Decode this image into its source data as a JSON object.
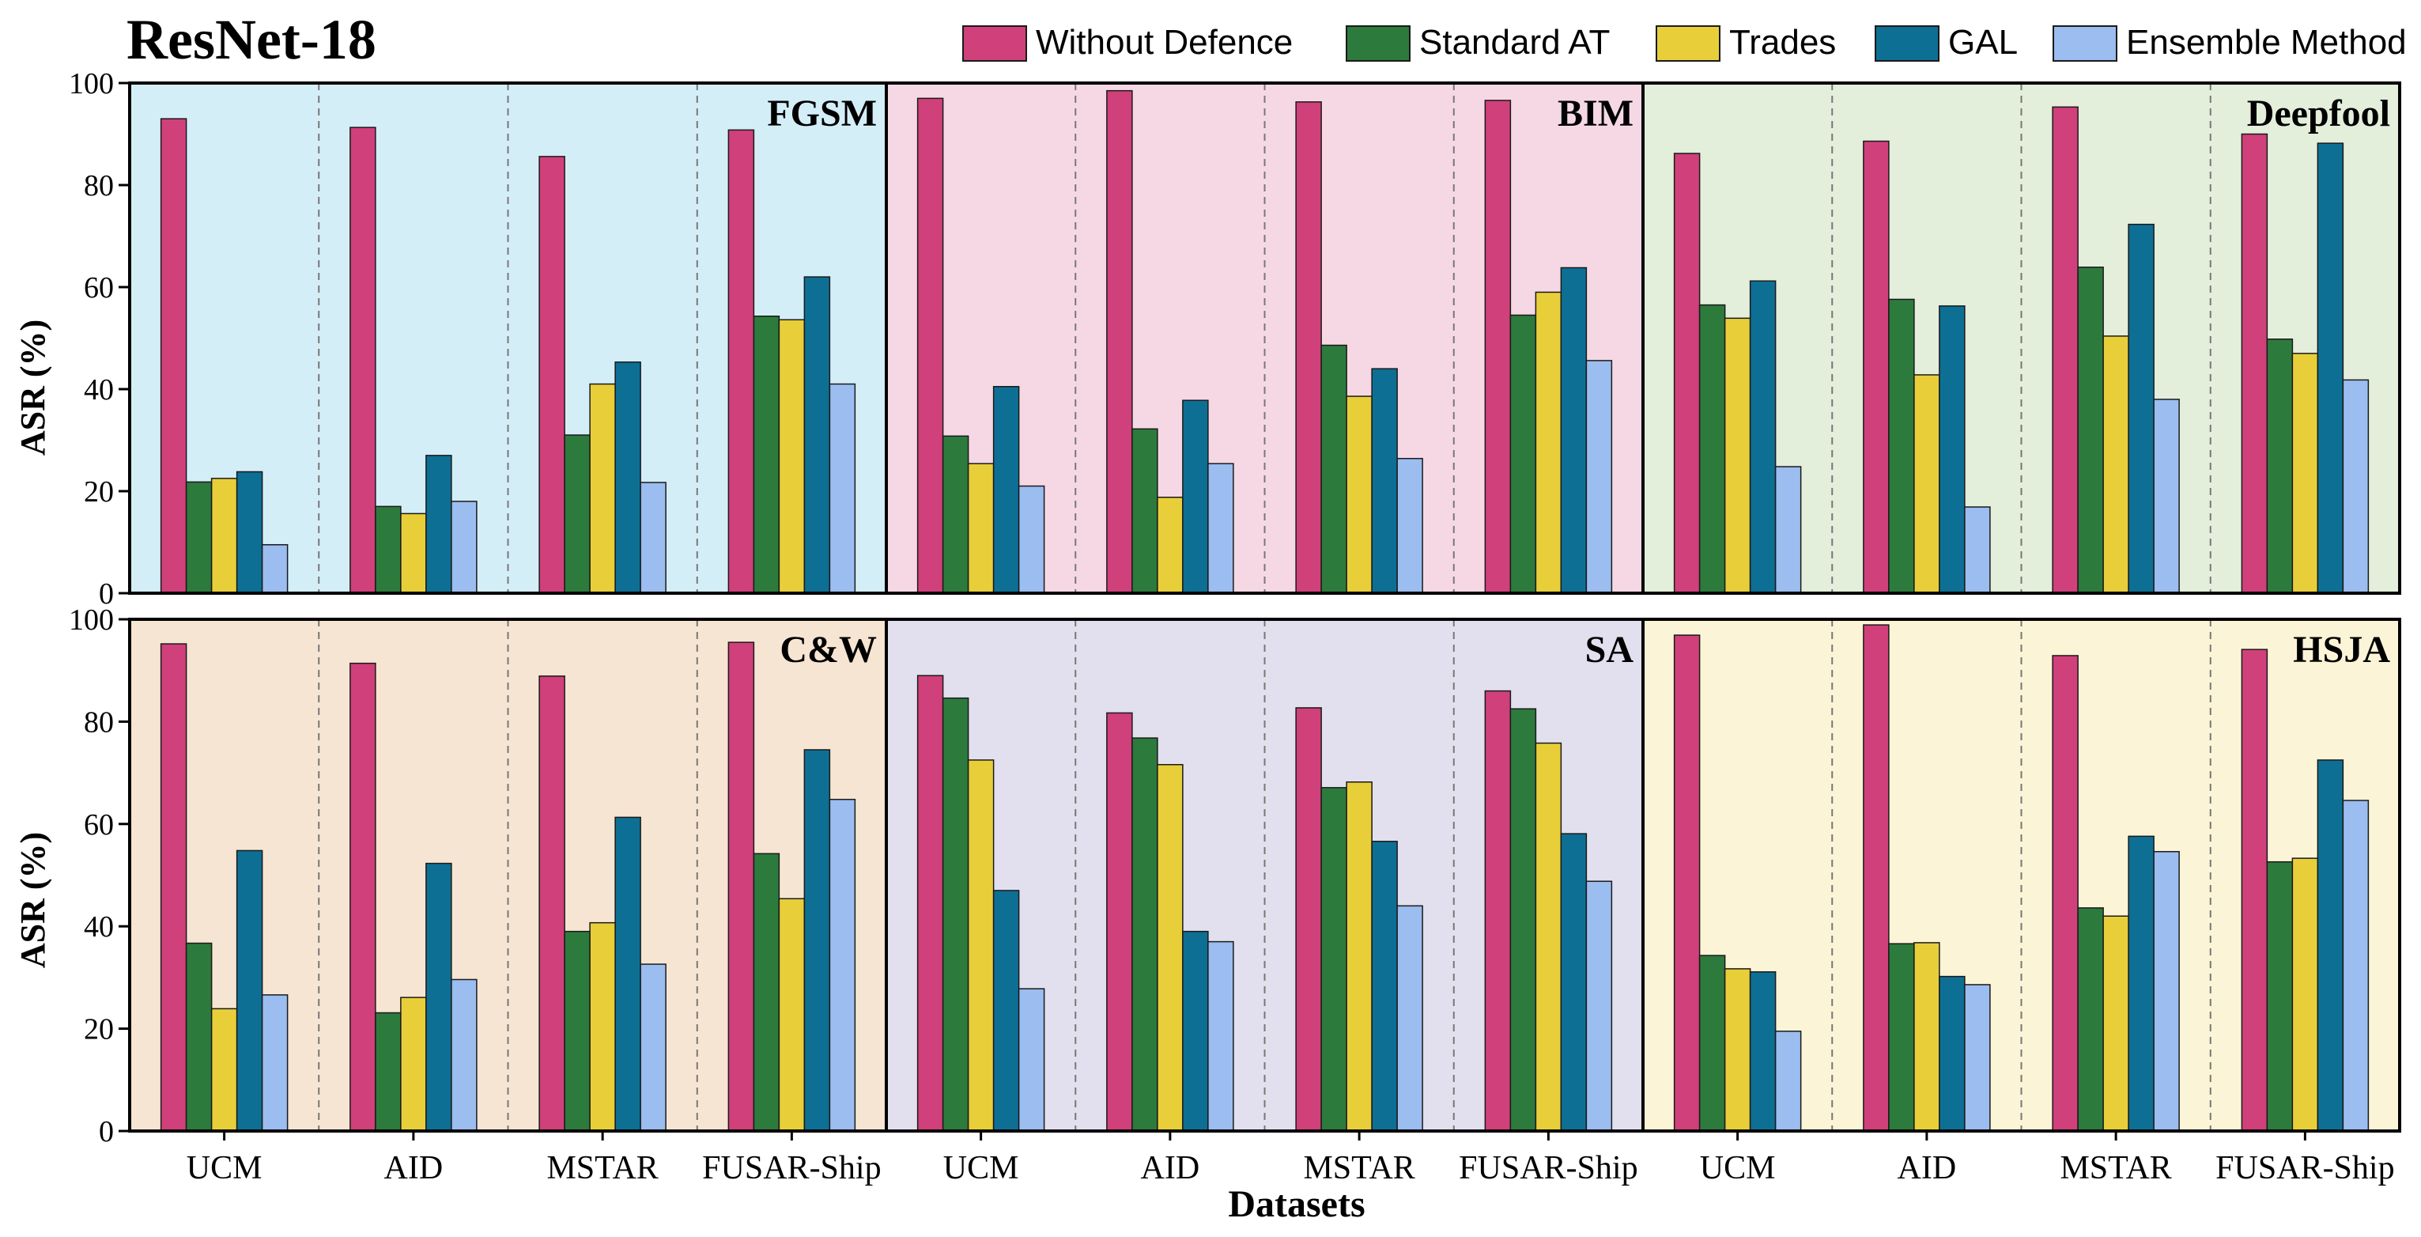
{
  "title": "ResNet-18",
  "xlabel": "Datasets",
  "ylabel": "ASR (%)",
  "colors": {
    "Without Defence": "#d0407a",
    "Standard AT": "#2d7a3d",
    "Trades": "#e8cf3a",
    "GAL": "#0e6f94",
    "Ensemble Method": "#9bbdf0",
    "panel_FGSM": "#d4eef8",
    "panel_BIM": "#f6d8e4",
    "panel_Deepfool": "#e3eedb",
    "panel_CW": "#f6e5d2",
    "panel_SA": "#e2e0ee",
    "panel_HSJA": "#fbf4d6"
  },
  "chart_data": {
    "type": "bar",
    "series_names": [
      "Without Defence",
      "Standard AT",
      "Trades",
      "GAL",
      "Ensemble Method"
    ],
    "categories": [
      "UCM",
      "AID",
      "MSTAR",
      "FUSAR-Ship"
    ],
    "ylim": [
      0,
      100
    ],
    "yticks": [
      0,
      20,
      40,
      60,
      80,
      100
    ],
    "grid": false,
    "legend": "top",
    "panels": [
      {
        "attack": "FGSM",
        "color_key": "panel_FGSM",
        "values": [
          [
            93.0,
            21.8,
            22.5,
            23.8,
            9.5
          ],
          [
            91.3,
            17.0,
            15.6,
            27.0,
            18.0
          ],
          [
            85.6,
            31.0,
            41.0,
            45.3,
            21.7
          ],
          [
            90.8,
            54.3,
            53.6,
            62.0,
            41.0
          ]
        ]
      },
      {
        "attack": "BIM",
        "color_key": "panel_BIM",
        "values": [
          [
            97.0,
            30.8,
            25.4,
            40.5,
            21.0
          ],
          [
            98.5,
            32.2,
            18.8,
            37.8,
            25.4
          ],
          [
            96.3,
            48.6,
            38.6,
            44.0,
            26.4
          ],
          [
            96.6,
            54.5,
            59.0,
            63.8,
            45.6
          ]
        ]
      },
      {
        "attack": "Deepfool",
        "color_key": "panel_Deepfool",
        "values": [
          [
            86.2,
            56.5,
            53.9,
            61.2,
            24.8
          ],
          [
            88.6,
            57.6,
            42.8,
            56.3,
            16.9
          ],
          [
            95.3,
            63.9,
            50.4,
            72.3,
            38.0
          ],
          [
            90.0,
            49.8,
            47.0,
            88.2,
            41.8
          ]
        ]
      },
      {
        "attack": "C&W",
        "color_key": "panel_CW",
        "values": [
          [
            95.2,
            36.7,
            23.9,
            54.8,
            26.6
          ],
          [
            91.4,
            23.1,
            26.1,
            52.3,
            29.6
          ],
          [
            88.9,
            39.0,
            40.7,
            61.3,
            32.6
          ],
          [
            95.5,
            54.2,
            45.4,
            74.5,
            64.8
          ]
        ]
      },
      {
        "attack": "SA",
        "color_key": "panel_SA",
        "values": [
          [
            89.0,
            84.6,
            72.5,
            47.0,
            27.8
          ],
          [
            81.7,
            76.8,
            71.6,
            39.0,
            37.0
          ],
          [
            82.7,
            67.1,
            68.2,
            56.6,
            44.0
          ],
          [
            86.0,
            82.5,
            75.8,
            58.1,
            48.8
          ]
        ]
      },
      {
        "attack": "HSJA",
        "color_key": "panel_HSJA",
        "values": [
          [
            96.9,
            34.3,
            31.7,
            31.1,
            19.5
          ],
          [
            98.9,
            36.6,
            36.8,
            30.2,
            28.6
          ],
          [
            92.9,
            43.6,
            42.0,
            57.6,
            54.6
          ],
          [
            94.1,
            52.6,
            53.3,
            72.5,
            64.6
          ]
        ]
      }
    ]
  }
}
